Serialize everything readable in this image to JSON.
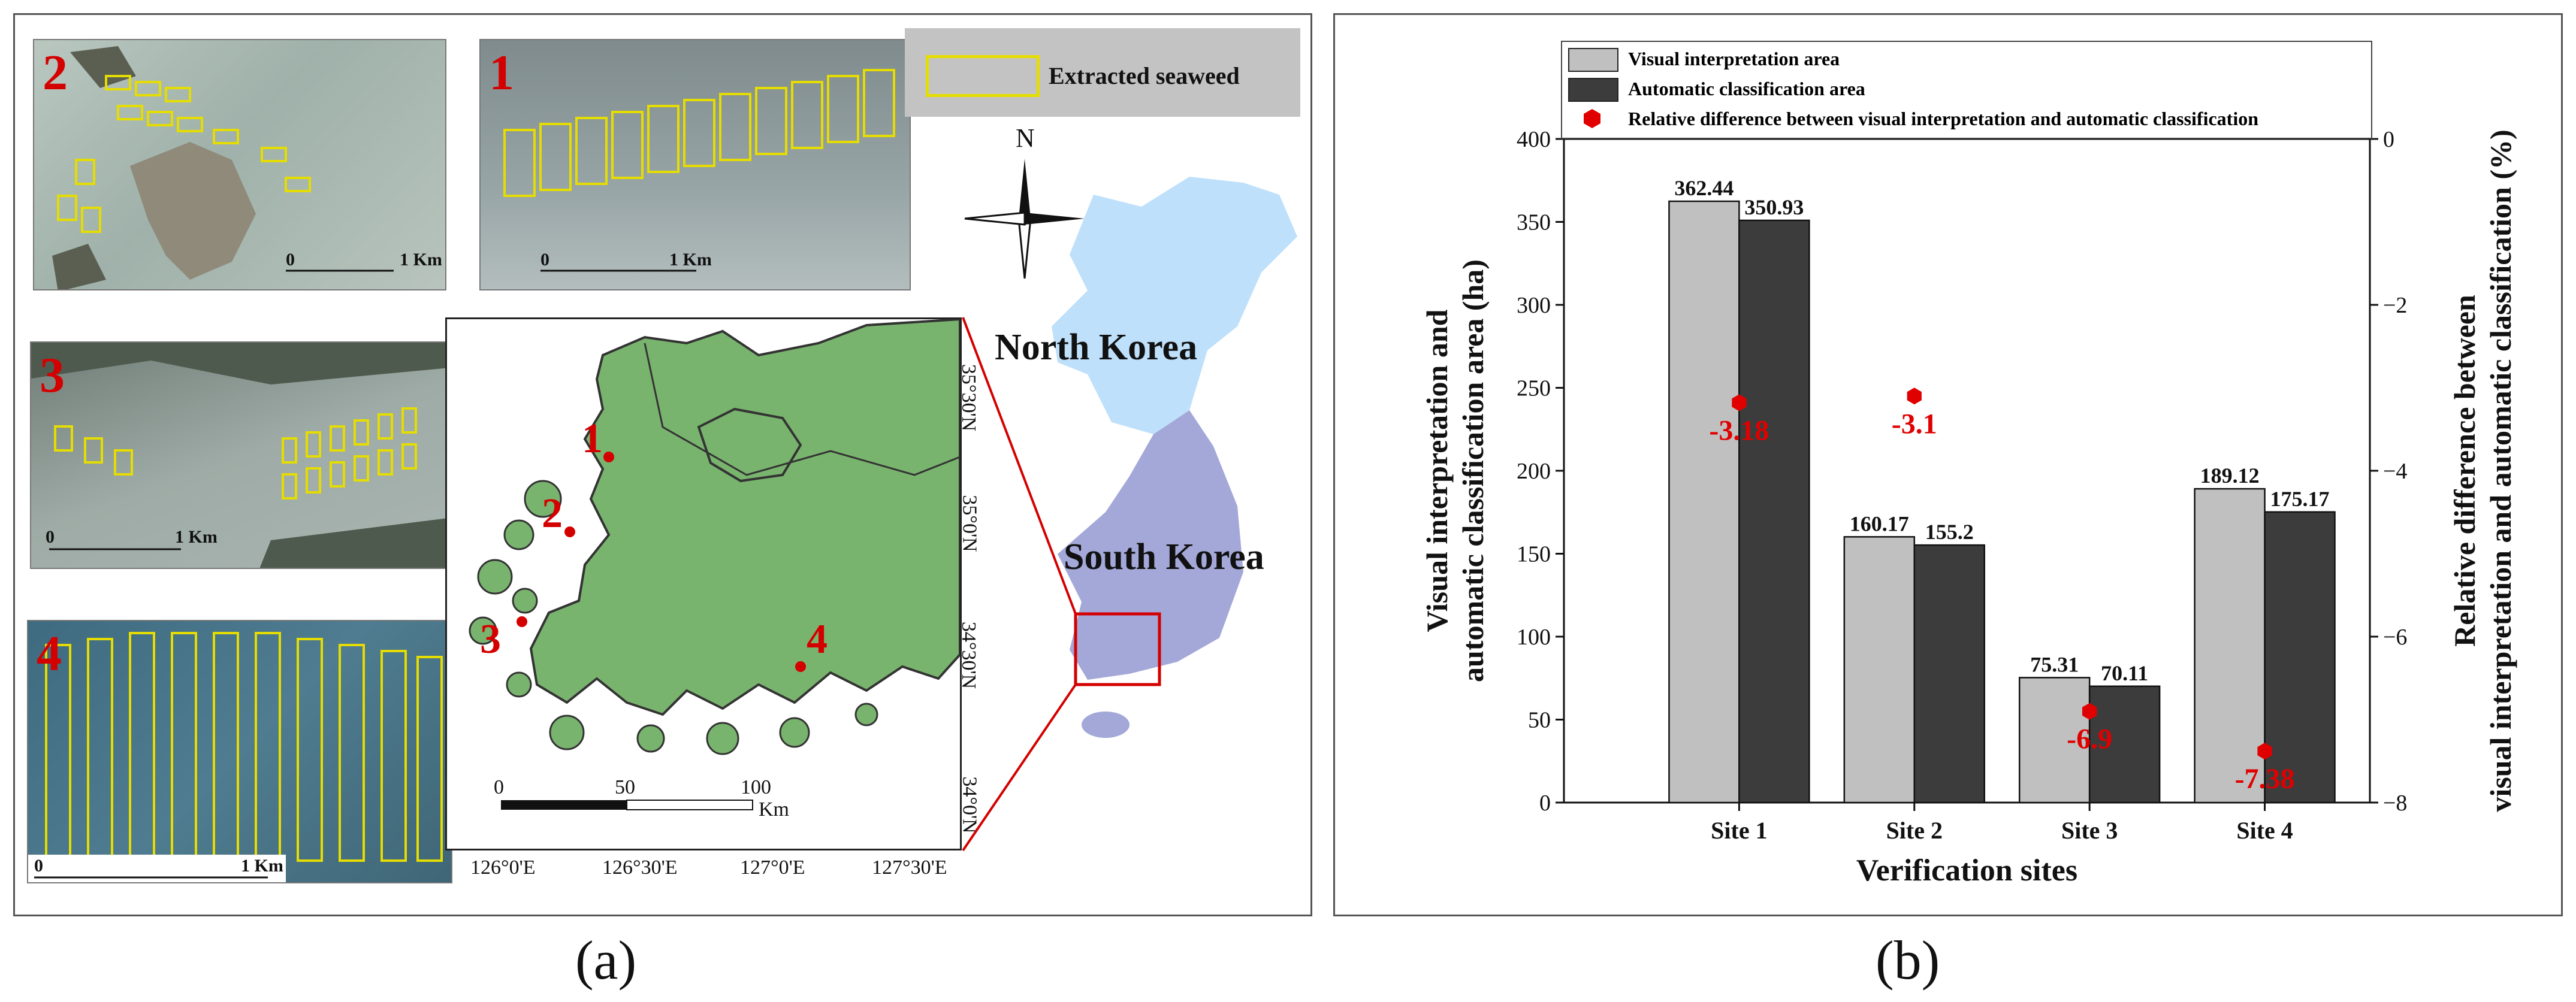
{
  "panel_a": {
    "caption": "(a)",
    "legend_label": "Extracted seaweed",
    "north_label": "N",
    "north_korea_label": "North Korea",
    "south_korea_label": "South Korea",
    "thumbnails": [
      {
        "num": "2",
        "scale_start": "0",
        "scale_end": "1 Km"
      },
      {
        "num": "1",
        "scale_start": "0",
        "scale_end": "1 Km"
      },
      {
        "num": "3",
        "scale_start": "0",
        "scale_end": "1 Km"
      },
      {
        "num": "4",
        "scale_start": "0",
        "scale_end": "1 Km"
      }
    ],
    "map": {
      "x_ticks": [
        "126°0'E",
        "126°30'E",
        "127°0'E",
        "127°30'E"
      ],
      "y_ticks": [
        "35°30'N",
        "35°0'N",
        "34°30'N",
        "34°0'N"
      ],
      "site_labels": [
        "1",
        "2",
        "3",
        "4"
      ],
      "scale_labels": [
        "0",
        "50",
        "100",
        "Km"
      ]
    },
    "colors": {
      "land": "#79b46e",
      "north_korea": "#bfe0fb",
      "south_korea": "#a3a8d8",
      "site_marker": "#d40000",
      "outline_yellow": "#e6dd00"
    }
  },
  "panel_b": {
    "caption": "(b)",
    "chart_data": {
      "type": "bar",
      "categories": [
        "Site 1",
        "Site 2",
        "Site 3",
        "Site 4"
      ],
      "series": [
        {
          "name": "Visual interpretation area",
          "values": [
            362.44,
            160.17,
            75.31,
            189.12
          ],
          "labels": [
            "362.44",
            "160.17",
            "75.31",
            "189.12"
          ],
          "color": "#c0c0c0"
        },
        {
          "name": "Automatic classification area",
          "values": [
            350.93,
            155.2,
            70.11,
            175.17
          ],
          "labels": [
            "350.93",
            "155.2",
            "70.11",
            "175.17"
          ],
          "color": "#3c3c3c"
        }
      ],
      "secondary_series": {
        "name": "Relative difference between visual interpretation and automatic classification",
        "type": "scatter",
        "values": [
          -3.18,
          -3.1,
          -6.9,
          -7.38
        ],
        "labels": [
          "-3.18",
          "-3.1",
          "-6.9",
          "-7.38"
        ],
        "color": "#e00000"
      },
      "xlabel": "Verification sites",
      "ylabel": "Visual interpretation and automatic classification area (ha)",
      "ylabel_lines": [
        "Visual interpretation and",
        "automatic classification area (ha)"
      ],
      "y2label": "Relative difference between visual interpretation and automatic classification (%)",
      "y2label_lines": [
        "Relative difference between",
        "visual interpretation and automatic classification (%)"
      ],
      "ylim": [
        0,
        400
      ],
      "y_ticks": [
        0,
        50,
        100,
        150,
        200,
        250,
        300,
        350,
        400
      ],
      "y2lim": [
        -8,
        0
      ],
      "y2_ticks": [
        0,
        -2,
        -4,
        -6,
        -8
      ],
      "x_range": [
        0,
        4.6
      ],
      "category_positions": [
        1,
        2,
        3,
        4
      ],
      "legend_position": "top"
    }
  }
}
